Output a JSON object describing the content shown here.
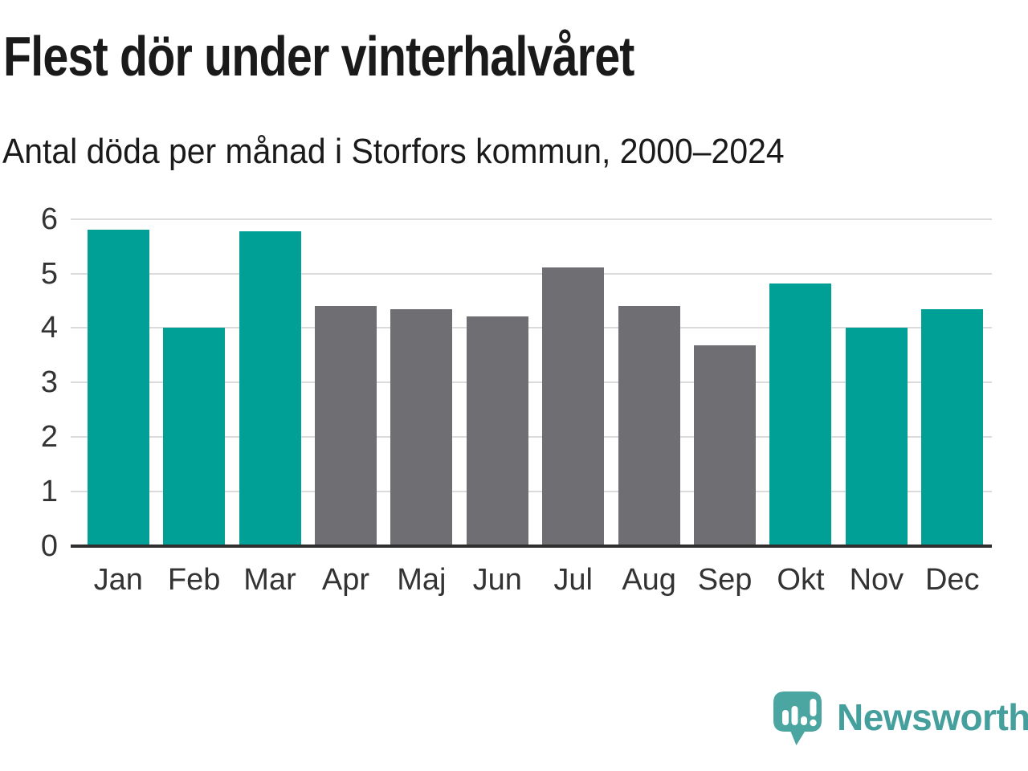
{
  "header": {
    "title": "Flest dör under vinterhalvåret",
    "subtitle": "Antal döda per månad i Storfors kommun, 2000–2024"
  },
  "chart_data": {
    "type": "bar",
    "categories": [
      "Jan",
      "Feb",
      "Mar",
      "Apr",
      "Maj",
      "Jun",
      "Jul",
      "Aug",
      "Sep",
      "Okt",
      "Nov",
      "Dec"
    ],
    "values": [
      5.8,
      4.0,
      5.77,
      4.4,
      4.34,
      4.21,
      5.11,
      4.4,
      3.68,
      4.81,
      4.0,
      4.34
    ],
    "bar_color_keys": [
      "winter",
      "winter",
      "winter",
      "summer",
      "summer",
      "summer",
      "summer",
      "summer",
      "summer",
      "winter",
      "winter",
      "winter"
    ],
    "palette": {
      "winter": "#00A096",
      "summer": "#6F6F73"
    },
    "title": "Flest dör under vinterhalvåret",
    "subtitle": "Antal döda per månad i Storfors kommun, 2000–2024",
    "xlabel": "",
    "ylabel": "",
    "ylim": [
      0,
      6
    ],
    "yticks": [
      0,
      1,
      2,
      3,
      4,
      5,
      6
    ],
    "grid": true,
    "legend": "none",
    "grid_color": "#dbdbdb",
    "axis_color": "#2e2e2e",
    "tick_label_color": "#333333"
  },
  "footer": {
    "brand": "Newsworthy",
    "brand_color": "#45A09D",
    "logo_icon": "newsworthy-speech-bubble-bar-chart-icon"
  }
}
